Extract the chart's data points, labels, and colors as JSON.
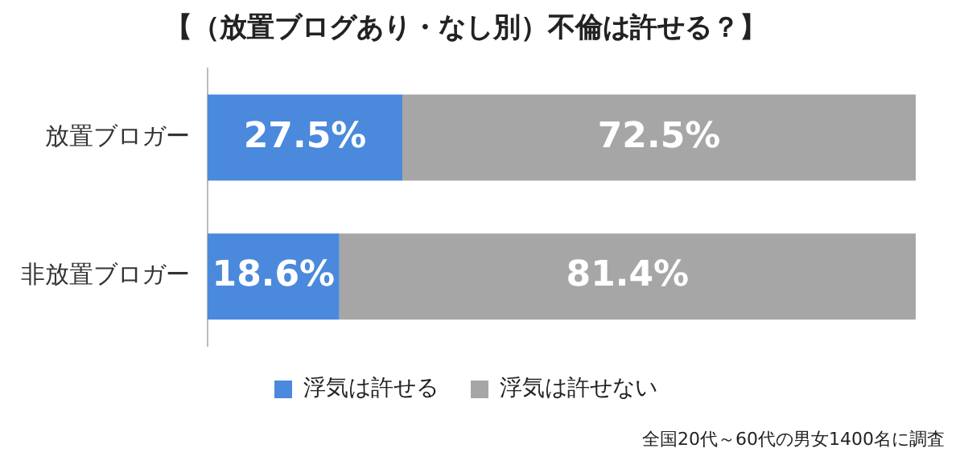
{
  "chart_data": {
    "type": "bar",
    "orientation": "horizontal",
    "stacked": true,
    "title": "【（放置ブログあり・なし別）不倫は許せる？】",
    "categories": [
      "放置ブロガー",
      "非放置ブロガー"
    ],
    "series": [
      {
        "name": "浮気は許せる",
        "color": "#4a89dc",
        "values": [
          27.5,
          18.6
        ],
        "value_labels": [
          "27.5%",
          "18.6%"
        ]
      },
      {
        "name": "浮気は許せない",
        "color": "#a6a6a6",
        "values": [
          72.5,
          81.4
        ],
        "value_labels": [
          "72.5%",
          "81.4%"
        ]
      }
    ],
    "legend": "bottom",
    "tick_labels": "y",
    "annotations": [
      "全国20代～60代の男女1400名に調査"
    ]
  }
}
